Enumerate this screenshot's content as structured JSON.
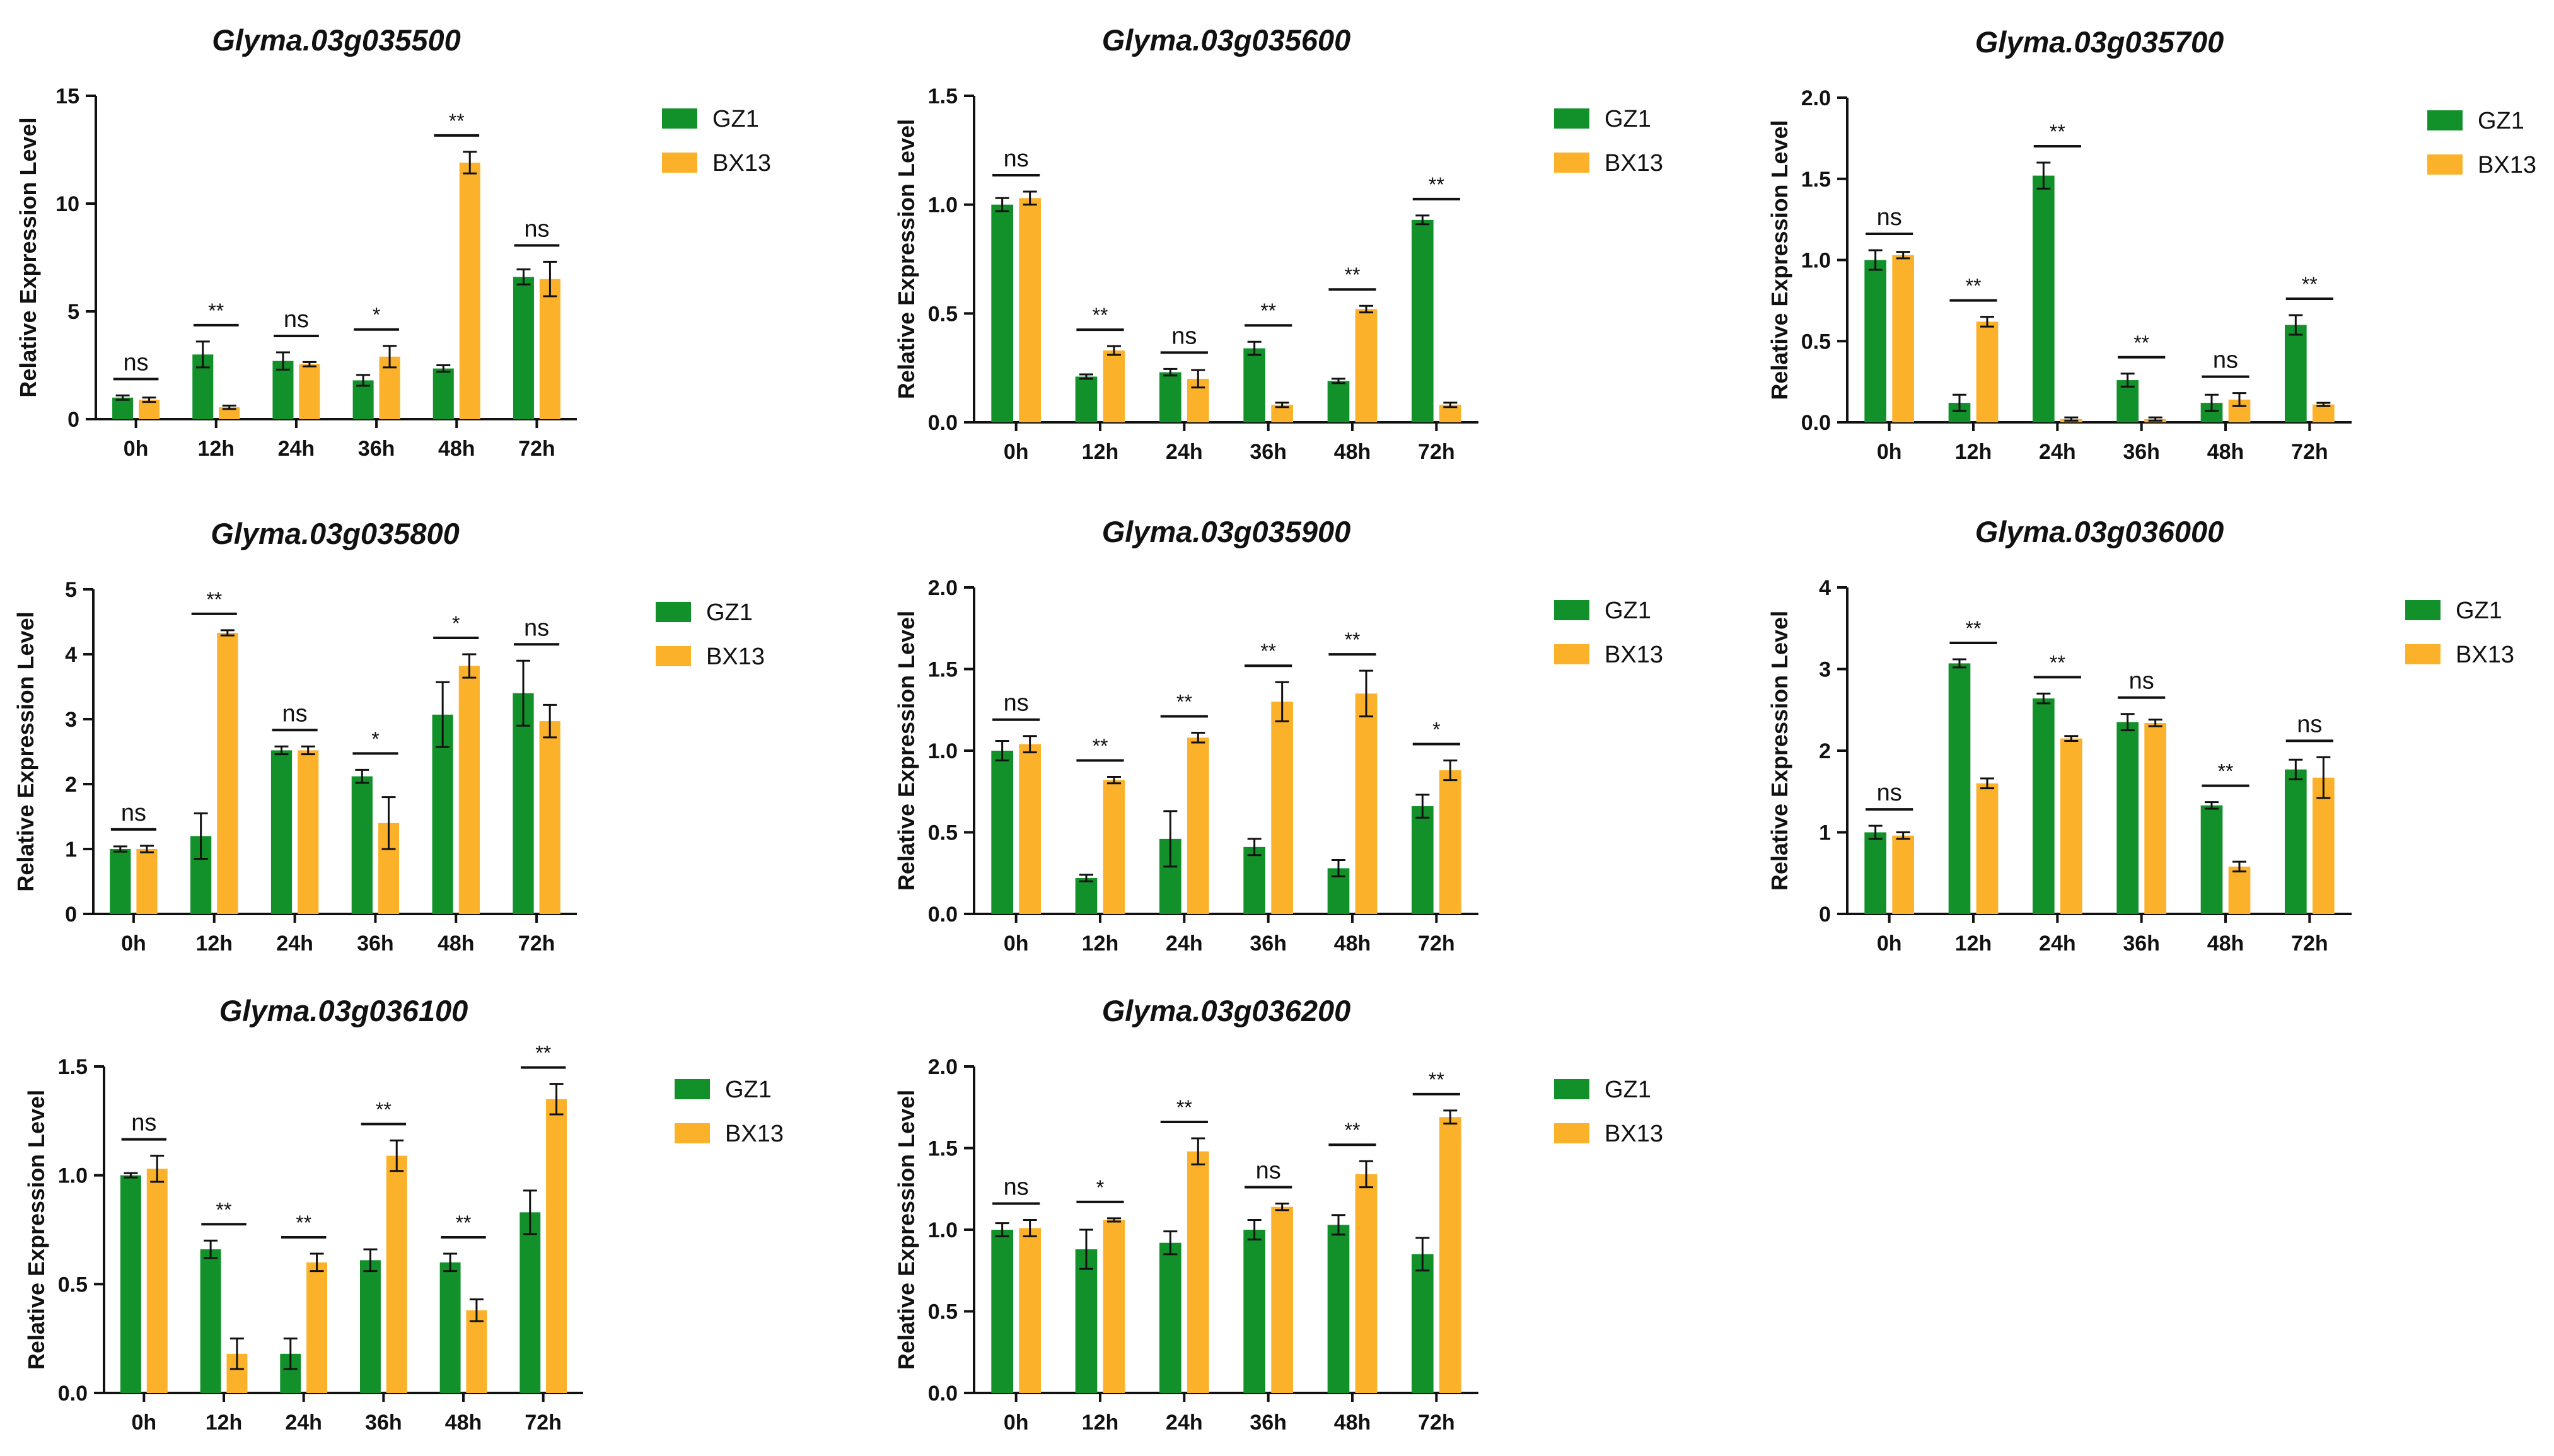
{
  "colors": {
    "gz1": "#12912B",
    "bx13": "#FBB12A",
    "axis": "#111111"
  },
  "legend_series": [
    "GZ1",
    "BX13"
  ],
  "ylabel": "Relative Expression Level",
  "categories": [
    "0h",
    "12h",
    "24h",
    "36h",
    "48h",
    "72h"
  ],
  "chart_data": [
    {
      "type": "bar",
      "title": "Glyma.03g035500",
      "ylabel": "Relative Expression Level",
      "categories": [
        "0h",
        "12h",
        "24h",
        "36h",
        "48h",
        "72h"
      ],
      "ylim": [
        0,
        15
      ],
      "yticks": [
        0,
        5,
        10,
        15
      ],
      "series": [
        {
          "name": "GZ1",
          "values": [
            1.0,
            3.0,
            2.7,
            1.8,
            2.35,
            6.6
          ],
          "errors": [
            0.1,
            0.6,
            0.4,
            0.25,
            0.15,
            0.35
          ]
        },
        {
          "name": "BX13",
          "values": [
            0.9,
            0.55,
            2.55,
            2.9,
            11.9,
            6.5
          ],
          "errors": [
            0.1,
            0.08,
            0.1,
            0.5,
            0.5,
            0.8
          ]
        }
      ],
      "significance": [
        "ns",
        "**",
        "ns",
        "*",
        "**",
        "ns"
      ],
      "legend": "right"
    },
    {
      "type": "bar",
      "title": "Glyma.03g035600",
      "ylabel": "Relative Expression Level",
      "categories": [
        "0h",
        "12h",
        "24h",
        "36h",
        "48h",
        "72h"
      ],
      "ylim": [
        0,
        1.5
      ],
      "yticks": [
        0.0,
        0.5,
        1.0,
        1.5
      ],
      "series": [
        {
          "name": "GZ1",
          "values": [
            1.0,
            0.21,
            0.23,
            0.34,
            0.19,
            0.93
          ],
          "errors": [
            0.03,
            0.01,
            0.015,
            0.03,
            0.01,
            0.02
          ]
        },
        {
          "name": "BX13",
          "values": [
            1.03,
            0.33,
            0.2,
            0.08,
            0.52,
            0.08
          ],
          "errors": [
            0.03,
            0.02,
            0.04,
            0.01,
            0.015,
            0.01
          ]
        }
      ],
      "significance": [
        "ns",
        "**",
        "ns",
        "**",
        "**",
        "**"
      ],
      "legend": "right"
    },
    {
      "type": "bar",
      "title": "Glyma.03g035700",
      "ylabel": "Relative Expression Level",
      "categories": [
        "0h",
        "12h",
        "24h",
        "36h",
        "48h",
        "72h"
      ],
      "ylim": [
        0,
        2.0
      ],
      "yticks": [
        0.0,
        0.5,
        1.0,
        1.5,
        2.0
      ],
      "series": [
        {
          "name": "GZ1",
          "values": [
            1.0,
            0.12,
            1.52,
            0.26,
            0.12,
            0.6
          ],
          "errors": [
            0.06,
            0.05,
            0.08,
            0.04,
            0.05,
            0.06
          ]
        },
        {
          "name": "BX13",
          "values": [
            1.03,
            0.62,
            0.02,
            0.02,
            0.14,
            0.11
          ],
          "errors": [
            0.02,
            0.03,
            0.01,
            0.01,
            0.04,
            0.01
          ]
        }
      ],
      "significance": [
        "ns",
        "**",
        "**",
        "**",
        "ns",
        "**"
      ],
      "legend": "right"
    },
    {
      "type": "bar",
      "title": "Glyma.03g035800",
      "ylabel": "Relative Expression Level",
      "categories": [
        "0h",
        "12h",
        "24h",
        "36h",
        "48h",
        "72h"
      ],
      "ylim": [
        0,
        5
      ],
      "yticks": [
        0,
        1,
        2,
        3,
        4,
        5
      ],
      "series": [
        {
          "name": "GZ1",
          "values": [
            1.0,
            1.2,
            2.52,
            2.12,
            3.07,
            3.4
          ],
          "errors": [
            0.04,
            0.35,
            0.06,
            0.1,
            0.5,
            0.5
          ]
        },
        {
          "name": "BX13",
          "values": [
            1.0,
            4.33,
            2.52,
            1.4,
            3.82,
            2.97
          ],
          "errors": [
            0.05,
            0.04,
            0.06,
            0.4,
            0.18,
            0.25
          ]
        }
      ],
      "significance": [
        "ns",
        "**",
        "ns",
        "*",
        "*",
        "ns"
      ],
      "legend": "right"
    },
    {
      "type": "bar",
      "title": "Glyma.03g035900",
      "ylabel": "Relative Expression Level",
      "categories": [
        "0h",
        "12h",
        "24h",
        "36h",
        "48h",
        "72h"
      ],
      "ylim": [
        0,
        2.0
      ],
      "yticks": [
        0.0,
        0.5,
        1.0,
        1.5,
        2.0
      ],
      "series": [
        {
          "name": "GZ1",
          "values": [
            1.0,
            0.22,
            0.46,
            0.41,
            0.28,
            0.66
          ],
          "errors": [
            0.06,
            0.02,
            0.17,
            0.05,
            0.05,
            0.07
          ]
        },
        {
          "name": "BX13",
          "values": [
            1.04,
            0.82,
            1.08,
            1.3,
            1.35,
            0.88
          ],
          "errors": [
            0.05,
            0.02,
            0.03,
            0.12,
            0.14,
            0.06
          ]
        }
      ],
      "significance": [
        "ns",
        "**",
        "**",
        "**",
        "**",
        "*"
      ],
      "legend": "right"
    },
    {
      "type": "bar",
      "title": "Glyma.03g036000",
      "ylabel": "Relative Expression Level",
      "categories": [
        "0h",
        "12h",
        "24h",
        "36h",
        "48h",
        "72h"
      ],
      "ylim": [
        0,
        4
      ],
      "yticks": [
        0,
        1,
        2,
        3,
        4
      ],
      "series": [
        {
          "name": "GZ1",
          "values": [
            1.0,
            3.07,
            2.64,
            2.35,
            1.33,
            1.77
          ],
          "errors": [
            0.08,
            0.05,
            0.06,
            0.1,
            0.04,
            0.12
          ]
        },
        {
          "name": "BX13",
          "values": [
            0.96,
            1.6,
            2.15,
            2.34,
            0.58,
            1.67
          ],
          "errors": [
            0.04,
            0.06,
            0.03,
            0.04,
            0.06,
            0.25
          ]
        }
      ],
      "significance": [
        "ns",
        "**",
        "**",
        "ns",
        "**",
        "ns"
      ],
      "legend": "right"
    },
    {
      "type": "bar",
      "title": "Glyma.03g036100",
      "ylabel": "Relative Expression Level",
      "categories": [
        "0h",
        "12h",
        "24h",
        "36h",
        "48h",
        "72h"
      ],
      "ylim": [
        0,
        1.5
      ],
      "yticks": [
        0.0,
        0.5,
        1.0,
        1.5
      ],
      "series": [
        {
          "name": "GZ1",
          "values": [
            1.0,
            0.66,
            0.18,
            0.61,
            0.6,
            0.83
          ],
          "errors": [
            0.01,
            0.04,
            0.07,
            0.05,
            0.04,
            0.1
          ]
        },
        {
          "name": "BX13",
          "values": [
            1.03,
            0.18,
            0.6,
            1.09,
            0.38,
            1.35
          ],
          "errors": [
            0.06,
            0.07,
            0.04,
            0.07,
            0.05,
            0.07
          ]
        }
      ],
      "significance": [
        "ns",
        "**",
        "**",
        "**",
        "**",
        "**"
      ],
      "legend": "right"
    },
    {
      "type": "bar",
      "title": "Glyma.03g036200",
      "ylabel": "Relative Expression Level",
      "categories": [
        "0h",
        "12h",
        "24h",
        "36h",
        "48h",
        "72h"
      ],
      "ylim": [
        0,
        2.0
      ],
      "yticks": [
        0.0,
        0.5,
        1.0,
        1.5,
        2.0
      ],
      "series": [
        {
          "name": "GZ1",
          "values": [
            1.0,
            0.88,
            0.92,
            1.0,
            1.03,
            0.85
          ],
          "errors": [
            0.04,
            0.12,
            0.07,
            0.06,
            0.06,
            0.1
          ]
        },
        {
          "name": "BX13",
          "values": [
            1.01,
            1.06,
            1.48,
            1.14,
            1.34,
            1.69
          ],
          "errors": [
            0.05,
            0.01,
            0.08,
            0.02,
            0.08,
            0.04
          ]
        }
      ],
      "significance": [
        "ns",
        "*",
        "**",
        "ns",
        "**",
        "**"
      ],
      "legend": "right"
    }
  ]
}
